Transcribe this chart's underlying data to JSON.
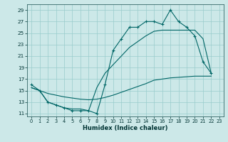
{
  "xlabel": "Humidex (Indice chaleur)",
  "bg_color": "#cce8e8",
  "grid_color": "#99cccc",
  "line_color": "#006666",
  "xlim": [
    -0.5,
    23.5
  ],
  "ylim": [
    10.5,
    30
  ],
  "yticks": [
    11,
    13,
    15,
    17,
    19,
    21,
    23,
    25,
    27,
    29
  ],
  "xticks": [
    0,
    1,
    2,
    3,
    4,
    5,
    6,
    7,
    8,
    9,
    10,
    11,
    12,
    13,
    14,
    15,
    16,
    17,
    18,
    19,
    20,
    21,
    22,
    23
  ],
  "line1_x": [
    0,
    1,
    2,
    3,
    4,
    5,
    6,
    7,
    8,
    9,
    10,
    11,
    12,
    13,
    14,
    15,
    16,
    17,
    18,
    19,
    20,
    21,
    22
  ],
  "line1_y": [
    16,
    15,
    13,
    12.5,
    12,
    11.5,
    11.5,
    11.5,
    11,
    16,
    22,
    24,
    26,
    26,
    27,
    27,
    26.5,
    29,
    27,
    26,
    24.5,
    20,
    18
  ],
  "line2_x": [
    0,
    1,
    2,
    3,
    4,
    5,
    6,
    7,
    8,
    9,
    10,
    11,
    12,
    13,
    14,
    15,
    16,
    17,
    18,
    19,
    20,
    21,
    22
  ],
  "line2_y": [
    15.5,
    15.0,
    14.5,
    14.2,
    13.9,
    13.7,
    13.5,
    13.4,
    13.5,
    13.8,
    14.2,
    14.7,
    15.2,
    15.7,
    16.2,
    16.8,
    17.0,
    17.2,
    17.3,
    17.4,
    17.5,
    17.5,
    17.5
  ],
  "line3_x": [
    0,
    1,
    2,
    3,
    4,
    5,
    6,
    7,
    8,
    9,
    10,
    11,
    12,
    13,
    14,
    15,
    16,
    17,
    18,
    19,
    20,
    21,
    22
  ],
  "line3_y": [
    15.5,
    15.0,
    13.0,
    12.5,
    12.0,
    11.8,
    11.8,
    11.5,
    15.5,
    18.0,
    19.5,
    21.0,
    22.5,
    23.5,
    24.5,
    25.3,
    25.5,
    25.5,
    25.5,
    25.5,
    25.5,
    24.0,
    18.0
  ]
}
